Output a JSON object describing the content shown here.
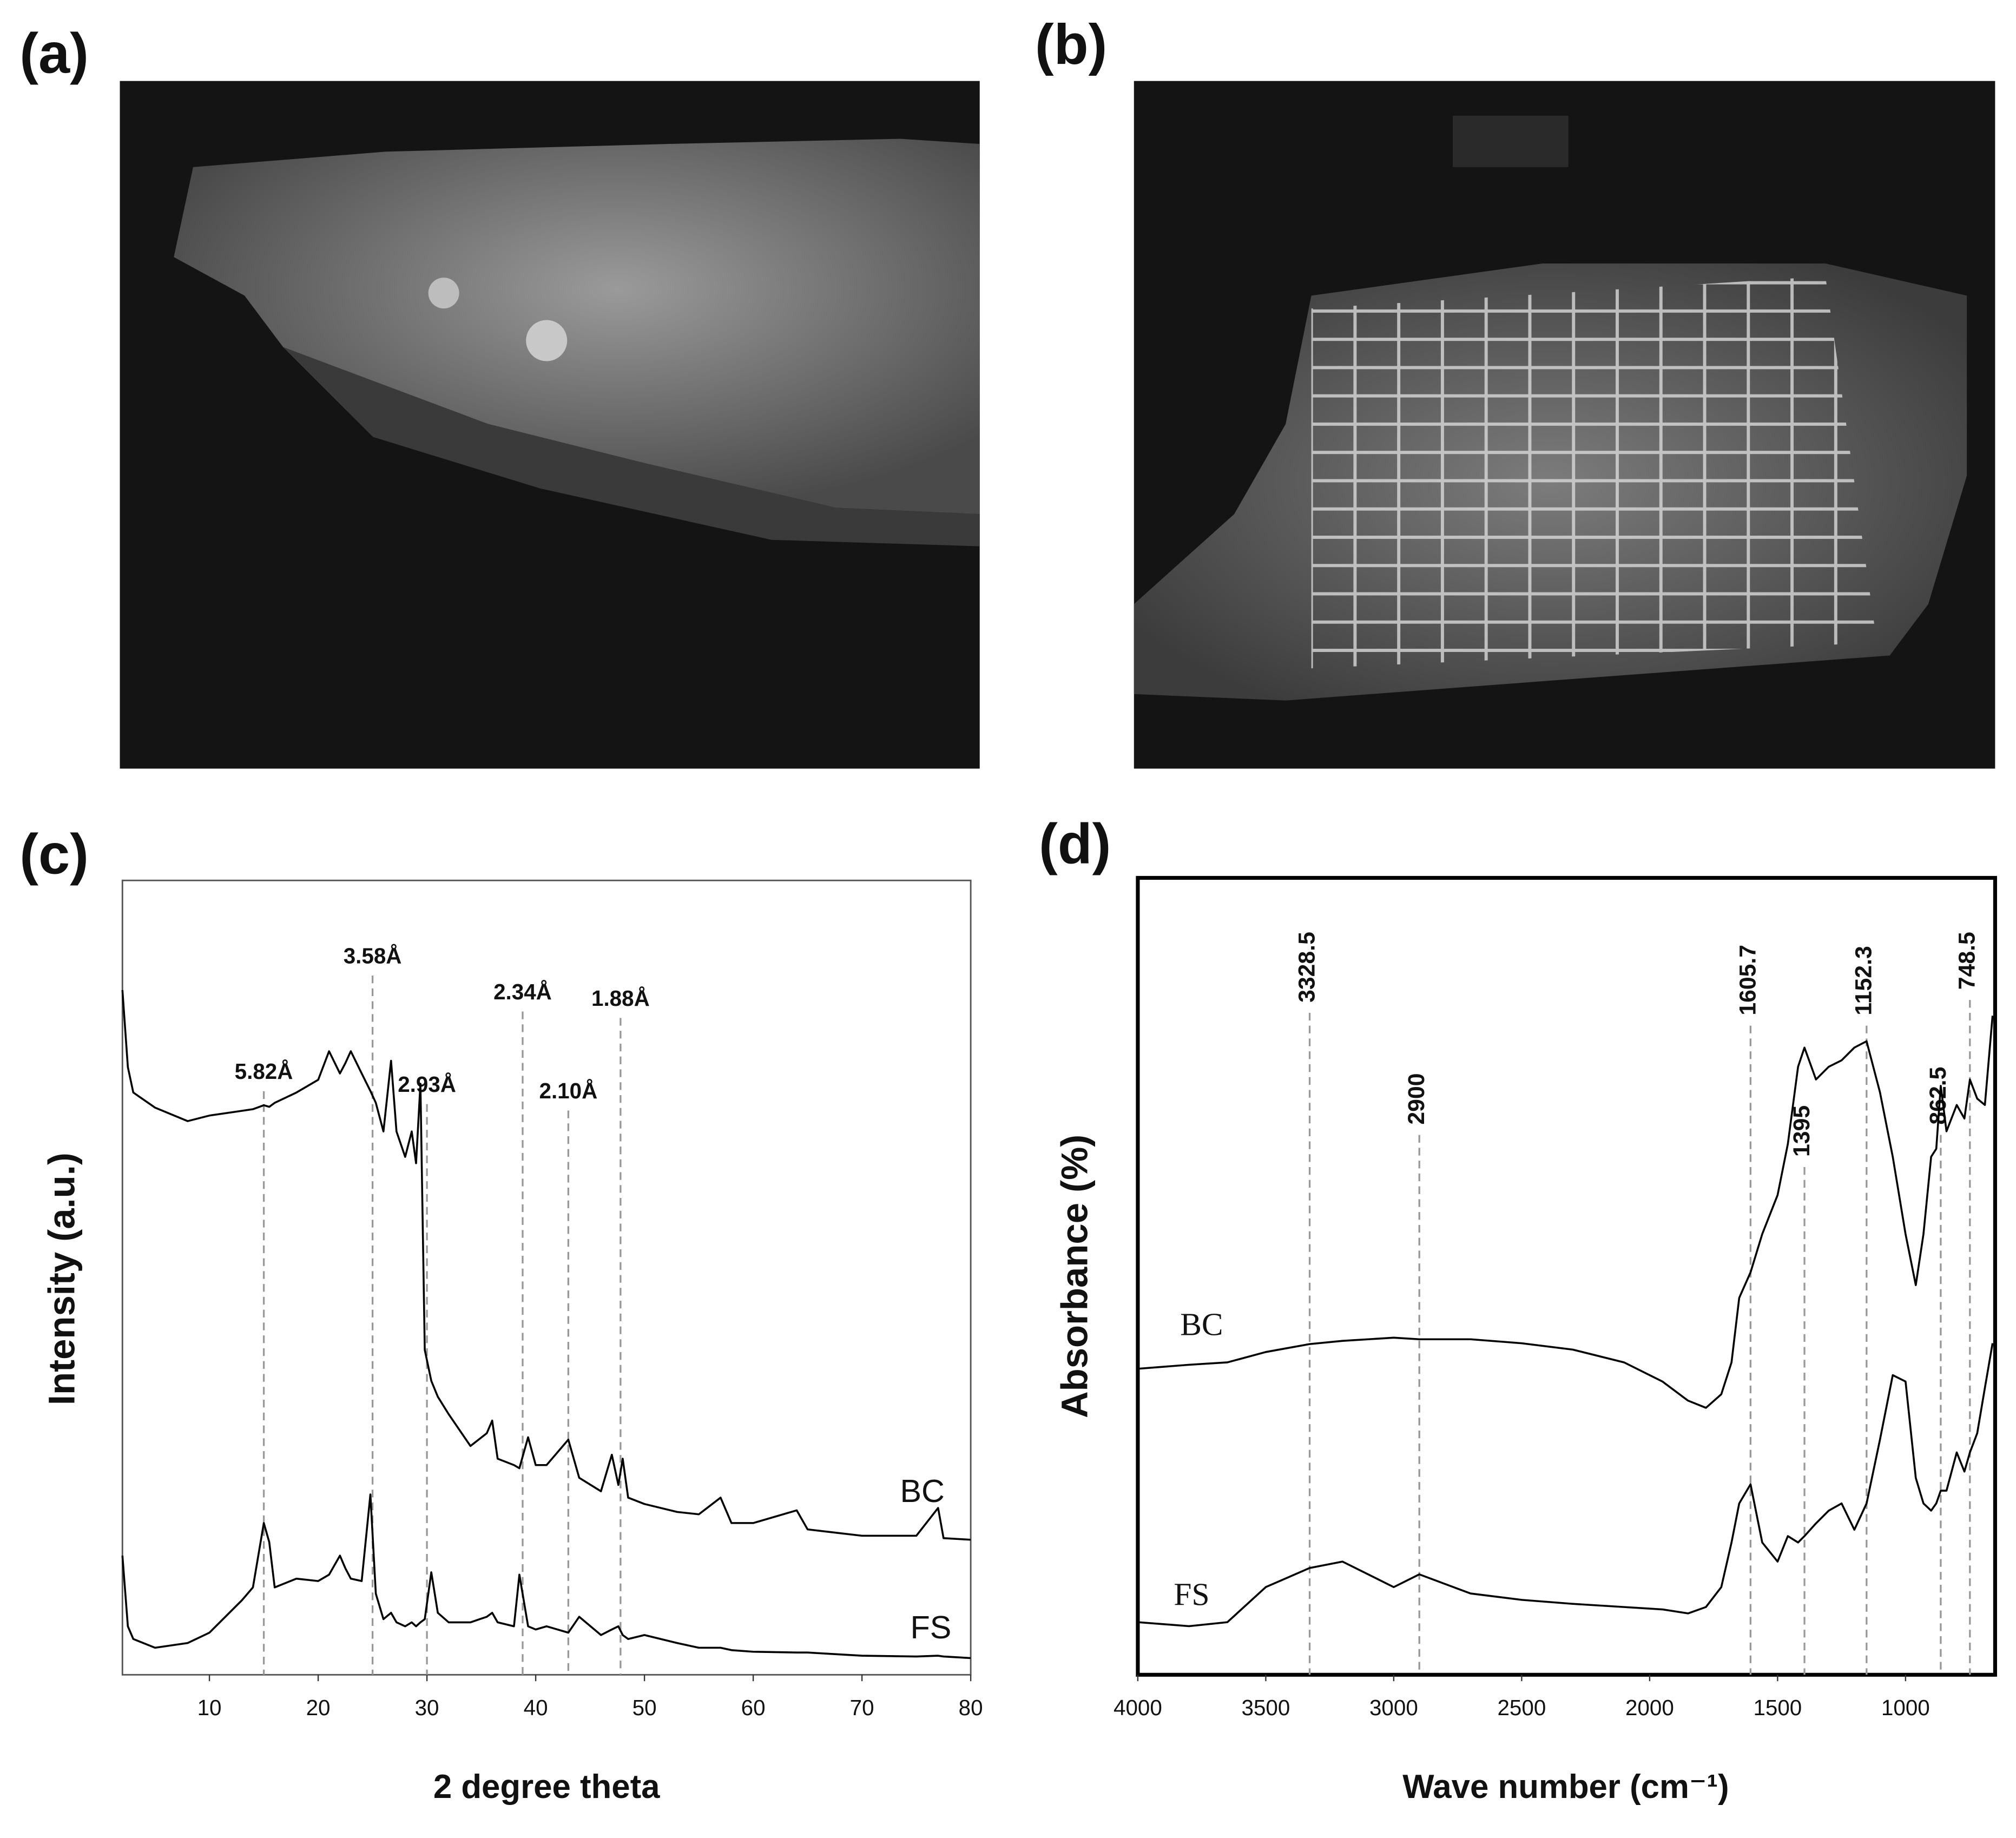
{
  "images": [
    {
      "label": "(a)"
    },
    {
      "label": "(b)"
    }
  ],
  "chart_data": [
    {
      "type": "line",
      "label": "(c)",
      "xlabel": "2 degree theta",
      "ylabel": "Intensity (a.u.)",
      "xlim": [
        2,
        80
      ],
      "xticks": [
        10,
        20,
        30,
        40,
        50,
        60,
        70,
        80
      ],
      "ylim": [
        0,
        100
      ],
      "x": [
        2,
        2.5,
        3,
        5,
        8,
        10,
        13,
        14,
        15,
        15.5,
        16,
        18,
        20,
        21,
        22,
        22.5,
        23,
        24,
        24.8,
        25.3,
        26,
        26.7,
        27.2,
        28,
        28.6,
        29,
        29.4,
        29.8,
        30.4,
        31,
        32,
        34,
        35.5,
        36,
        36.5,
        38,
        38.5,
        39.3,
        40,
        41,
        43,
        44,
        46,
        47,
        47.6,
        48,
        48.5,
        50,
        53,
        55,
        57,
        58,
        60,
        64,
        65,
        70,
        75,
        77,
        77.5,
        80
      ],
      "series": [
        {
          "name": "BC",
          "color": "#000000",
          "values": [
            86.2,
            76.5,
            73.3,
            71.4,
            69.7,
            70.4,
            71.0,
            71.2,
            71.7,
            71.5,
            72,
            73.3,
            74.9,
            78.5,
            75.7,
            77,
            78.5,
            75.7,
            73.5,
            72,
            68.4,
            77.3,
            68.4,
            65.2,
            68.4,
            64.4,
            74.4,
            40.9,
            37,
            35,
            32.8,
            28.8,
            30.4,
            32.0,
            27.2,
            26.4,
            26,
            29.9,
            26.4,
            26.4,
            29.6,
            24.8,
            23.1,
            27.7,
            23.9,
            27.2,
            22.3,
            21.5,
            20.5,
            20.2,
            22.3,
            19.1,
            19.1,
            20.7,
            18.3,
            17.5,
            17.5,
            21.0,
            17.2,
            17.0
          ]
        },
        {
          "name": "FS",
          "color": "#000000",
          "values": [
            15.0,
            6.1,
            4.5,
            3.4,
            4.0,
            5.3,
            9.4,
            11.0,
            19.1,
            16.7,
            11.0,
            12.1,
            11.8,
            12.6,
            15.0,
            13.4,
            12.1,
            11.8,
            22.7,
            10.2,
            7.0,
            7.8,
            6.6,
            6.1,
            6.6,
            6.1,
            6.6,
            7.0,
            12.9,
            7.8,
            6.6,
            6.6,
            7.3,
            7.8,
            6.6,
            6.1,
            12.6,
            6.1,
            5.7,
            6.1,
            5.3,
            7.3,
            5.0,
            5.7,
            6.1,
            5.0,
            4.5,
            5.0,
            4.0,
            3.4,
            3.4,
            3.1,
            2.9,
            2.8,
            2.8,
            2.4,
            2.3,
            2.4,
            2.3,
            2.1
          ]
        }
      ],
      "annotations": [
        {
          "x": 15,
          "label": "5.82Å"
        },
        {
          "x": 25,
          "label": "3.58Å"
        },
        {
          "x": 30,
          "label": "2.93Å"
        },
        {
          "x": 38.8,
          "label": "2.34Å"
        },
        {
          "x": 43,
          "label": "2.10Å"
        },
        {
          "x": 47.8,
          "label": "1.88Å"
        }
      ]
    },
    {
      "type": "line",
      "label": "(d)",
      "xlabel": "Wave number (cm⁻¹)",
      "ylabel": "Absorbance (%)",
      "xlim": [
        4000,
        650
      ],
      "xticks": [
        4000,
        3500,
        3000,
        2500,
        2000,
        1500,
        1000
      ],
      "ylim": [
        0,
        100
      ],
      "x": [
        4000,
        3800,
        3650,
        3500,
        3328.5,
        3200,
        3000,
        2900,
        2700,
        2500,
        2300,
        2100,
        1950,
        1850,
        1780,
        1720,
        1680,
        1650,
        1605.7,
        1560,
        1500,
        1460,
        1420,
        1395,
        1350,
        1300,
        1250,
        1200,
        1152.3,
        1100,
        1050,
        1000,
        960,
        930,
        900,
        880,
        862.5,
        840,
        800,
        770,
        748.5,
        720,
        690,
        660
      ],
      "series": [
        {
          "name": "BC",
          "color": "#000000",
          "values": [
            38.4,
            38.9,
            39.2,
            40.5,
            41.5,
            41.9,
            42.3,
            42.1,
            42.1,
            41.6,
            40.8,
            39.2,
            36.8,
            34.4,
            33.5,
            35.2,
            39.2,
            47.3,
            50.5,
            55.3,
            60.2,
            66.6,
            76.3,
            78.7,
            74.7,
            76.3,
            77.1,
            78.7,
            79.5,
            73.1,
            65.0,
            55.3,
            48.9,
            55.3,
            65.0,
            66.0,
            73.9,
            68.2,
            71.5,
            69.8,
            74.7,
            72.3,
            71.5,
            82.7
          ]
        },
        {
          "name": "FS",
          "color": "#000000",
          "values": [
            6.6,
            6.1,
            6.6,
            11.0,
            13.4,
            14.2,
            11.0,
            12.6,
            10.2,
            9.4,
            8.9,
            8.5,
            8.2,
            7.7,
            8.5,
            11.0,
            16.6,
            21.5,
            23.9,
            16.6,
            14.2,
            17.4,
            16.6,
            17.4,
            19.0,
            20.6,
            21.5,
            18.2,
            21.5,
            29.5,
            37.6,
            36.8,
            24.7,
            21.5,
            20.6,
            21.5,
            23.1,
            23.1,
            27.9,
            25.5,
            27.9,
            30.3,
            36.0,
            41.6
          ]
        }
      ],
      "annotations": [
        3328.5,
        2900,
        1605.7,
        1395,
        1152.3,
        862.5,
        748.5
      ]
    }
  ]
}
